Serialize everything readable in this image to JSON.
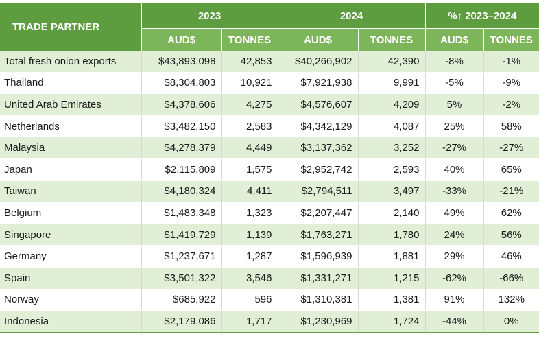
{
  "header": {
    "partner": "TRADE PARTNER",
    "year1": "2023",
    "year2": "2024",
    "change": "%↑ 2023–2024",
    "sub": [
      "AUD$",
      "TONNES",
      "AUD$",
      "TONNES",
      "AUD$",
      "TONNES"
    ]
  },
  "rows": [
    {
      "partner": "Total fresh onion exports",
      "aud2023": "$43,893,098",
      "t2023": "42,853",
      "aud2024": "$40,266,902",
      "t2024": "42,390",
      "audChg": "-8%",
      "tChg": "-1%"
    },
    {
      "partner": "Thailand",
      "aud2023": "$8,304,803",
      "t2023": "10,921",
      "aud2024": "$7,921,938",
      "t2024": "9,991",
      "audChg": "-5%",
      "tChg": "-9%"
    },
    {
      "partner": "United Arab Emirates",
      "aud2023": "$4,378,606",
      "t2023": "4,275",
      "aud2024": "$4,576,607",
      "t2024": "4,209",
      "audChg": "5%",
      "tChg": "-2%"
    },
    {
      "partner": "Netherlands",
      "aud2023": "$3,482,150",
      "t2023": "2,583",
      "aud2024": "$4,342,129",
      "t2024": "4,087",
      "audChg": "25%",
      "tChg": "58%"
    },
    {
      "partner": "Malaysia",
      "aud2023": "$4,278,379",
      "t2023": "4,449",
      "aud2024": "$3,137,362",
      "t2024": "3,252",
      "audChg": "-27%",
      "tChg": "-27%"
    },
    {
      "partner": "Japan",
      "aud2023": "$2,115,809",
      "t2023": "1,575",
      "aud2024": "$2,952,742",
      "t2024": "2,593",
      "audChg": "40%",
      "tChg": "65%"
    },
    {
      "partner": "Taiwan",
      "aud2023": "$4,180,324",
      "t2023": "4,411",
      "aud2024": "$2,794,511",
      "t2024": "3,497",
      "audChg": "-33%",
      "tChg": "-21%"
    },
    {
      "partner": "Belgium",
      "aud2023": "$1,483,348",
      "t2023": "1,323",
      "aud2024": "$2,207,447",
      "t2024": "2,140",
      "audChg": "49%",
      "tChg": "62%"
    },
    {
      "partner": "Singapore",
      "aud2023": "$1,419,729",
      "t2023": "1,139",
      "aud2024": "$1,763,271",
      "t2024": "1,780",
      "audChg": "24%",
      "tChg": "56%"
    },
    {
      "partner": "Germany",
      "aud2023": "$1,237,671",
      "t2023": "1,287",
      "aud2024": "$1,596,939",
      "t2024": "1,881",
      "audChg": "29%",
      "tChg": "46%"
    },
    {
      "partner": "Spain",
      "aud2023": "$3,501,322",
      "t2023": "3,546",
      "aud2024": "$1,331,271",
      "t2024": "1,215",
      "audChg": "-62%",
      "tChg": "-66%"
    },
    {
      "partner": "Norway",
      "aud2023": "$685,922",
      "t2023": "596",
      "aud2024": "$1,310,381",
      "t2024": "1,381",
      "audChg": "91%",
      "tChg": "132%"
    },
    {
      "partner": "Indonesia",
      "aud2023": "$2,179,086",
      "t2023": "1,717",
      "aud2024": "$1,230,969",
      "t2024": "1,724",
      "audChg": "-44%",
      "tChg": "0%"
    }
  ]
}
